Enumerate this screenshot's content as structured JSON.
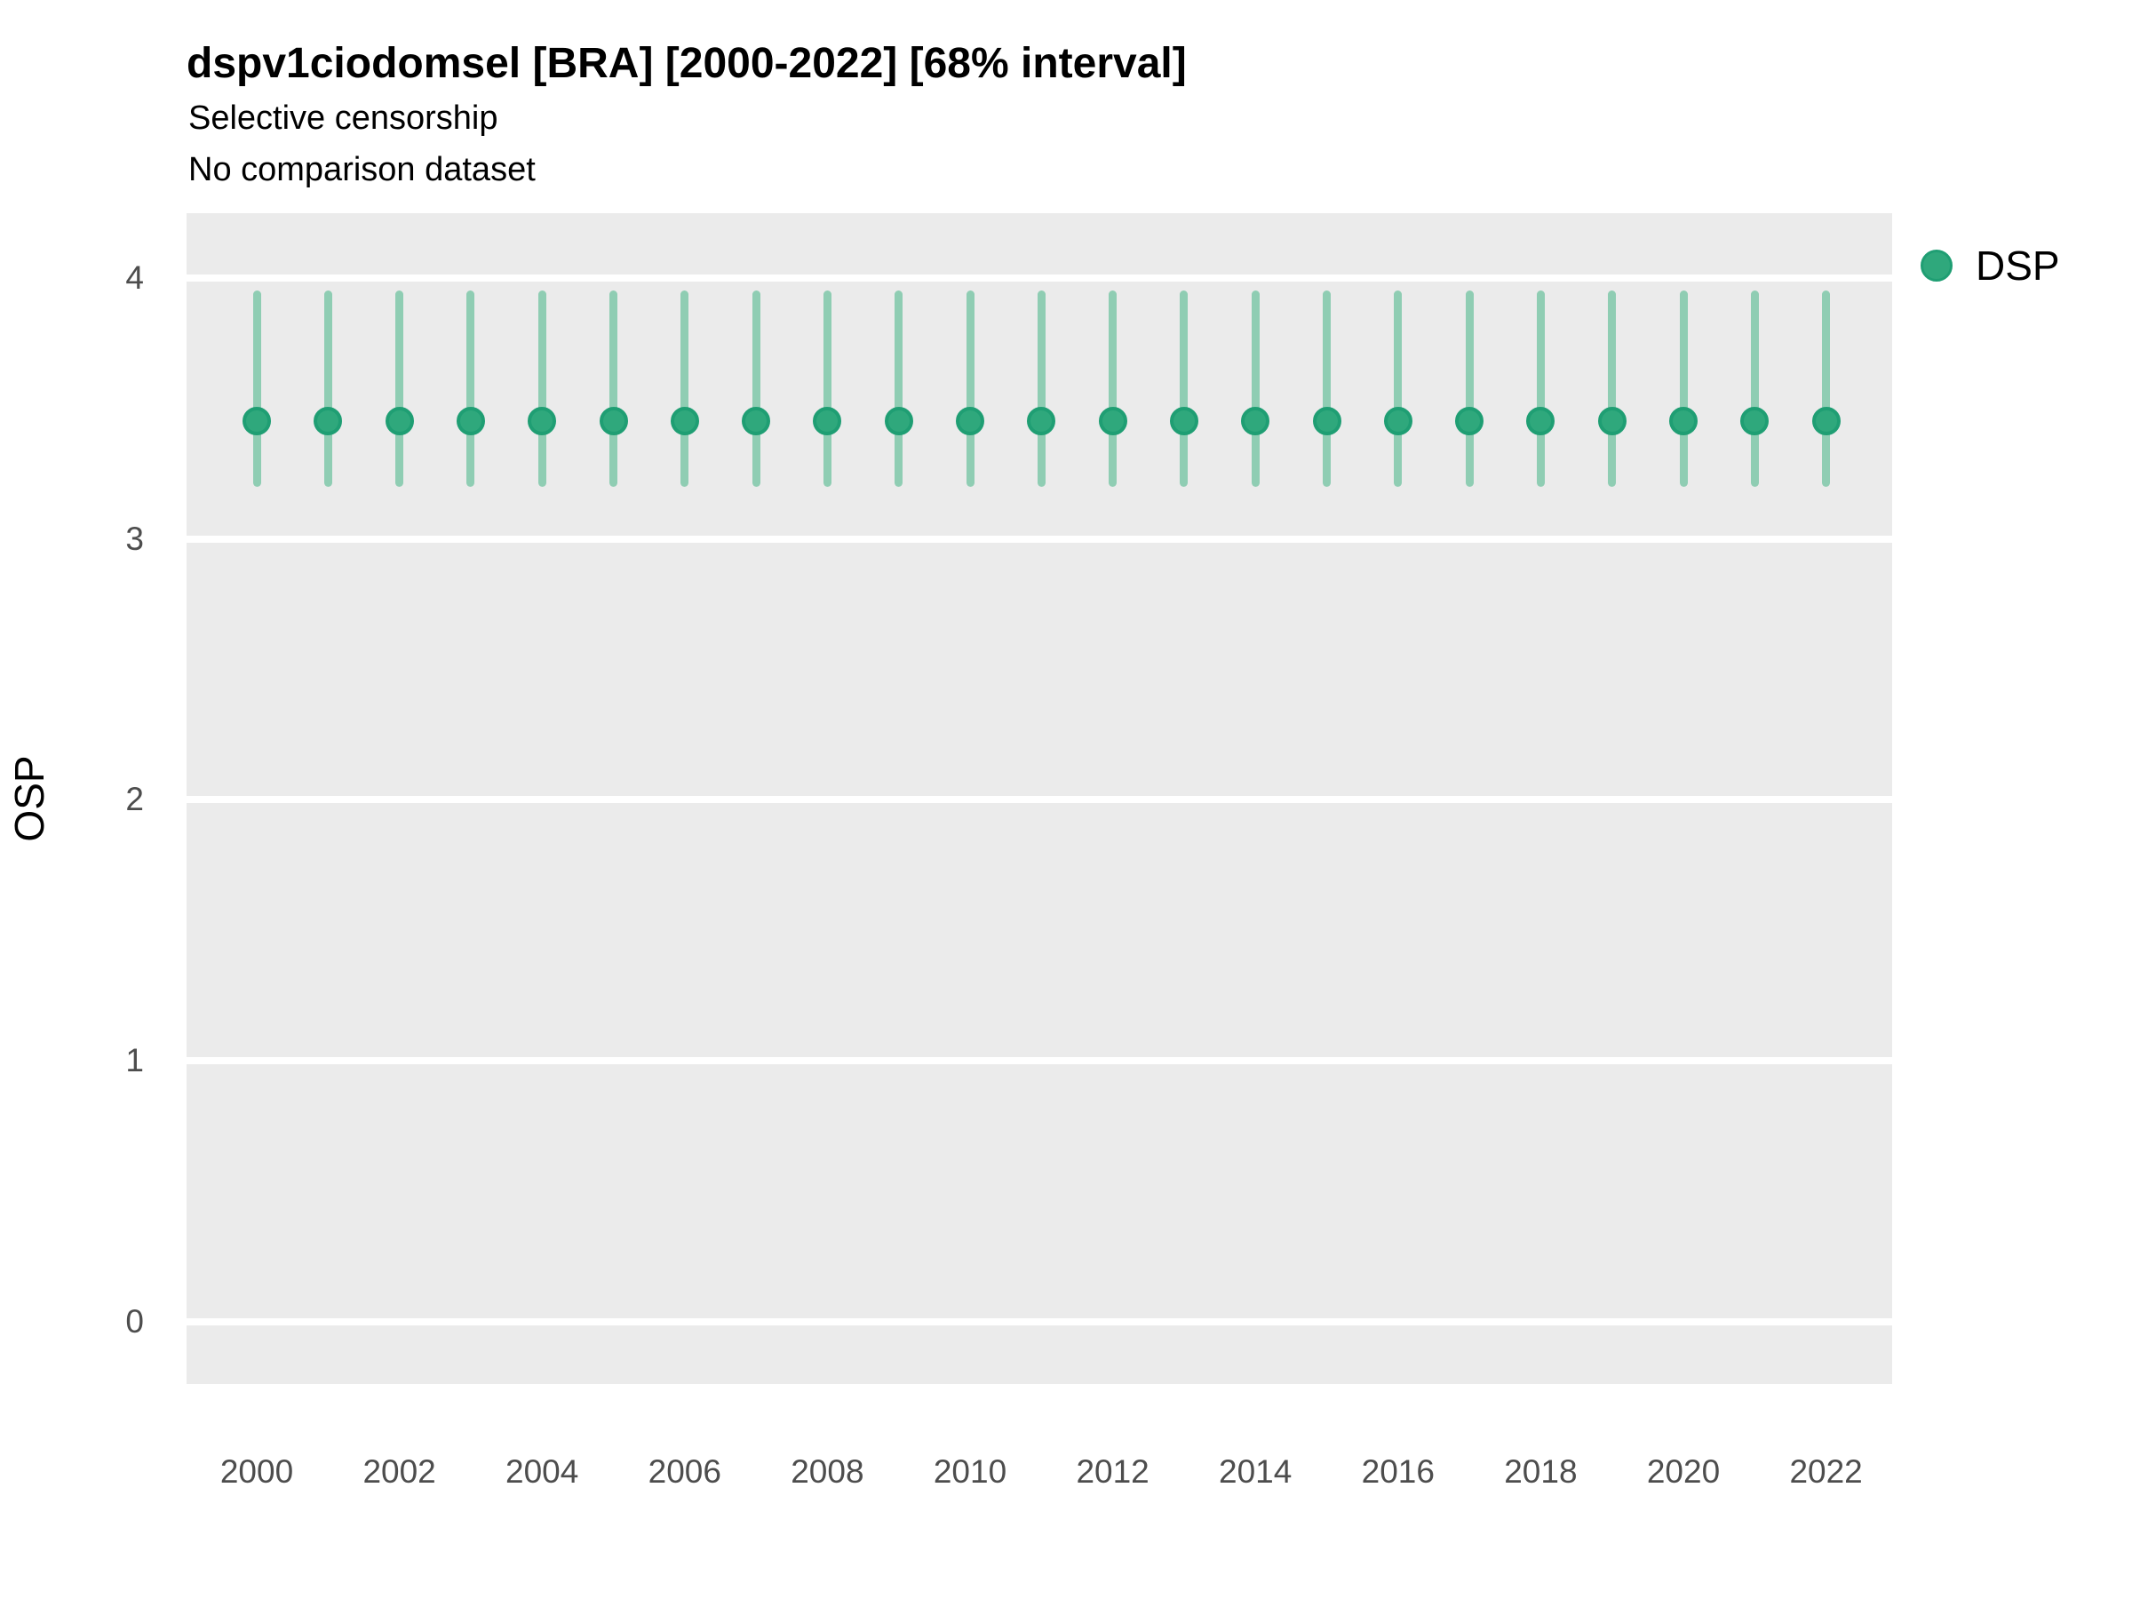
{
  "header": {
    "title": "dspv1ciodomsel [BRA] [2000-2022] [68% interval]",
    "subtitle1": "Selective censorship",
    "subtitle2": "No comparison dataset"
  },
  "legend": {
    "position": "right-top",
    "items": [
      {
        "label": "DSP",
        "marker": "circle",
        "color": "#2FA87C"
      }
    ]
  },
  "colors": {
    "point_fill": "#2FA87C",
    "point_stroke": "#1F9E73",
    "interval_line": "#8FCDB3",
    "panel_bg": "#EBEBEB",
    "gridline": "#FFFFFF",
    "tick_text": "#4D4D4D",
    "text": "#000000"
  },
  "chart_data": {
    "type": "scatter",
    "subtype": "pointrange",
    "title": "dspv1ciodomsel [BRA] [2000-2022] [68% interval]",
    "subtitle_lines": [
      "Selective censorship",
      "No comparison dataset"
    ],
    "xlabel": "",
    "ylabel": "OSP",
    "interval_level": "68%",
    "grid": "horizontal major gridlines only, white on grey panel",
    "legend_position": "right top",
    "yticks": [
      4,
      3,
      2,
      1,
      0
    ],
    "ytick_labels": [
      "4",
      "3",
      "2",
      "1",
      "0"
    ],
    "ylim": [
      -0.25,
      4.25
    ],
    "xticks": [
      2000,
      2002,
      2004,
      2006,
      2008,
      2010,
      2012,
      2014,
      2016,
      2018,
      2020,
      2022
    ],
    "xlim": [
      1999,
      2023
    ],
    "series_name": "DSP",
    "points": [
      {
        "x": 2000,
        "y": 3.45,
        "lo": 3.2,
        "hi": 3.95
      },
      {
        "x": 2001,
        "y": 3.45,
        "lo": 3.2,
        "hi": 3.95
      },
      {
        "x": 2002,
        "y": 3.45,
        "lo": 3.2,
        "hi": 3.95
      },
      {
        "x": 2003,
        "y": 3.45,
        "lo": 3.2,
        "hi": 3.95
      },
      {
        "x": 2004,
        "y": 3.45,
        "lo": 3.2,
        "hi": 3.95
      },
      {
        "x": 2005,
        "y": 3.45,
        "lo": 3.2,
        "hi": 3.95
      },
      {
        "x": 2006,
        "y": 3.45,
        "lo": 3.2,
        "hi": 3.95
      },
      {
        "x": 2007,
        "y": 3.45,
        "lo": 3.2,
        "hi": 3.95
      },
      {
        "x": 2008,
        "y": 3.45,
        "lo": 3.2,
        "hi": 3.95
      },
      {
        "x": 2009,
        "y": 3.45,
        "lo": 3.2,
        "hi": 3.95
      },
      {
        "x": 2010,
        "y": 3.45,
        "lo": 3.2,
        "hi": 3.95
      },
      {
        "x": 2011,
        "y": 3.45,
        "lo": 3.2,
        "hi": 3.95
      },
      {
        "x": 2012,
        "y": 3.45,
        "lo": 3.2,
        "hi": 3.95
      },
      {
        "x": 2013,
        "y": 3.45,
        "lo": 3.2,
        "hi": 3.95
      },
      {
        "x": 2014,
        "y": 3.45,
        "lo": 3.2,
        "hi": 3.95
      },
      {
        "x": 2015,
        "y": 3.45,
        "lo": 3.2,
        "hi": 3.95
      },
      {
        "x": 2016,
        "y": 3.45,
        "lo": 3.2,
        "hi": 3.95
      },
      {
        "x": 2017,
        "y": 3.45,
        "lo": 3.2,
        "hi": 3.95
      },
      {
        "x": 2018,
        "y": 3.45,
        "lo": 3.2,
        "hi": 3.95
      },
      {
        "x": 2019,
        "y": 3.45,
        "lo": 3.2,
        "hi": 3.95
      },
      {
        "x": 2020,
        "y": 3.45,
        "lo": 3.2,
        "hi": 3.95
      },
      {
        "x": 2021,
        "y": 3.45,
        "lo": 3.2,
        "hi": 3.95
      },
      {
        "x": 2022,
        "y": 3.45,
        "lo": 3.2,
        "hi": 3.95
      }
    ]
  }
}
